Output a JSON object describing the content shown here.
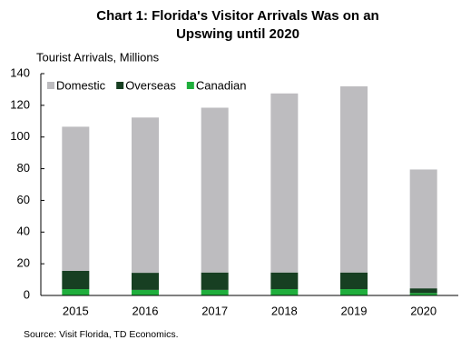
{
  "chart_data": {
    "type": "stacked_bar",
    "title": [
      "Chart 1: Florida's Visitor Arrivals Was on an",
      "Upswing until 2020"
    ],
    "y_label": "Tourist Arrivals, Millions",
    "source": "Source: Visit Florida, TD Economics.",
    "categories": [
      "2015",
      "2016",
      "2017",
      "2018",
      "2019",
      "2020"
    ],
    "series": [
      {
        "name": "Canadian",
        "color": "#1fae3c",
        "values": [
          4,
          3.5,
          3.5,
          4,
          4,
          1.5
        ]
      },
      {
        "name": "Overseas",
        "color": "#173f22",
        "values": [
          11.5,
          10.8,
          11,
          10.5,
          10.5,
          3
        ]
      },
      {
        "name": "Domestic",
        "color": "#bdbcbf",
        "values": [
          91,
          98,
          104,
          113,
          117.5,
          75
        ]
      }
    ],
    "legend_order": [
      2,
      1,
      0
    ],
    "ylim": [
      0,
      140
    ],
    "yticks": [
      0,
      20,
      40,
      60,
      80,
      100,
      120,
      140
    ],
    "grid": false
  }
}
